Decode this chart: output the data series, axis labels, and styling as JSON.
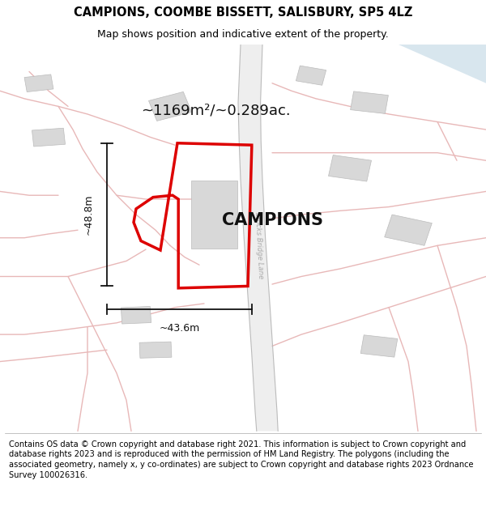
{
  "title_line1": "CAMPIONS, COOMBE BISSETT, SALISBURY, SP5 4LZ",
  "title_line2": "Map shows position and indicative extent of the property.",
  "area_label": "~1169m²/~0.289ac.",
  "property_label": "CAMPIONS",
  "width_label": "~43.6m",
  "height_label": "~48.8m",
  "footer_text": "Contains OS data © Crown copyright and database right 2021. This information is subject to Crown copyright and database rights 2023 and is reproduced with the permission of HM Land Registry. The polygons (including the associated geometry, namely x, y co-ordinates) are subject to Crown copyright and database rights 2023 Ordnance Survey 100026316.",
  "road_color": "#e8b8b8",
  "road_edge_color": "#c8a0a0",
  "road_lane_color": "#d8d0d0",
  "road_center_color": "#c8c0c0",
  "property_outline_color": "#dd0000",
  "building_color": "#d8d8d8",
  "building_edge": "#bbbbbb",
  "blue_patch_color": "#c8dce8",
  "dim_line_color": "#111111"
}
